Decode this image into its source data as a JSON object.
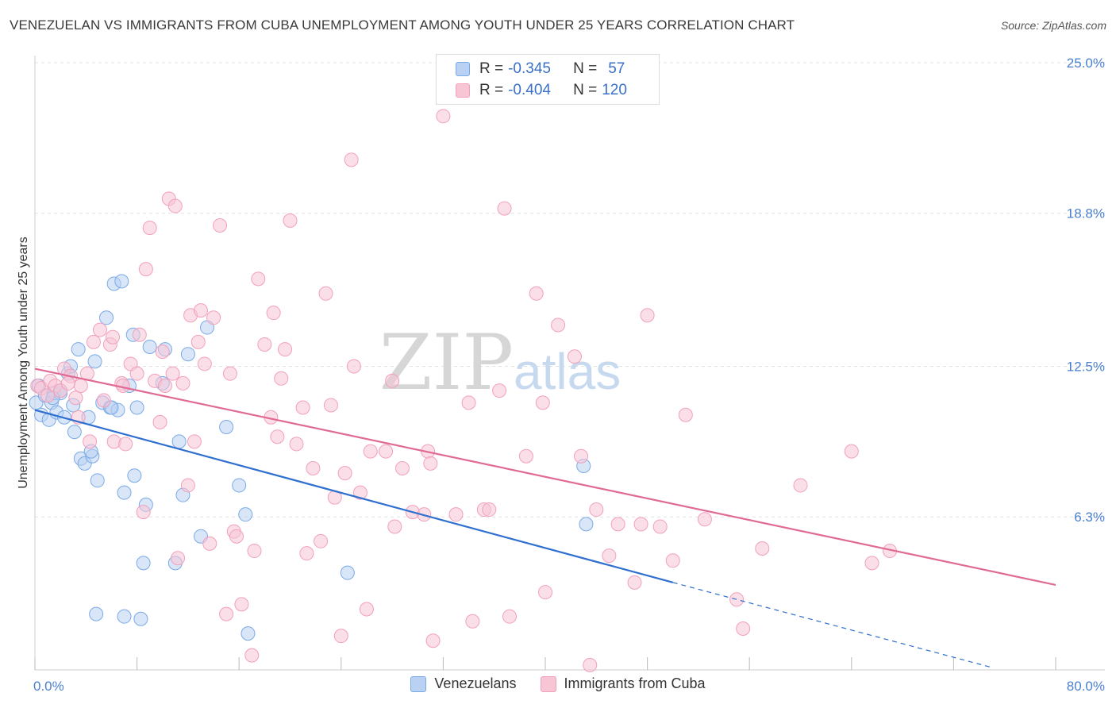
{
  "chart_data": {
    "type": "scatter",
    "title": "VENEZUELAN VS IMMIGRANTS FROM CUBA UNEMPLOYMENT AMONG YOUTH UNDER 25 YEARS CORRELATION CHART",
    "source": "Source: ZipAtlas.com",
    "ylabel": "Unemployment Among Youth under 25 years",
    "xlim": [
      0,
      80
    ],
    "ylim": [
      0,
      25
    ],
    "x_tick_labels": [
      "0.0%",
      "80.0%"
    ],
    "y_ticks": [
      6.3,
      12.5,
      18.8,
      25.0
    ],
    "y_tick_labels": [
      "6.3%",
      "12.5%",
      "18.8%",
      "25.0%"
    ],
    "watermark": "ZIPatlas",
    "legend": [
      {
        "r_label": "R = ",
        "r": "-0.345",
        "n_label": "N = ",
        "n": "57"
      },
      {
        "r_label": "R = ",
        "r": "-0.404",
        "n_label": "N = ",
        "n": "120"
      }
    ],
    "series": [
      {
        "name": "Venezuelans",
        "color": "#7aaae6",
        "fill": "#b9d1f3",
        "line_color": "#2f6fd0",
        "trend": {
          "x0": 0,
          "y0": 10.7,
          "x1": 50,
          "y1": 3.6,
          "dash_to_x": 75,
          "dash_to_y": 0.1
        },
        "points": [
          [
            0.1,
            11.0
          ],
          [
            0.3,
            11.7
          ],
          [
            0.5,
            10.5
          ],
          [
            0.8,
            11.3
          ],
          [
            1.1,
            10.3
          ],
          [
            1.3,
            11.0
          ],
          [
            1.5,
            11.4
          ],
          [
            1.7,
            10.6
          ],
          [
            2.0,
            11.4
          ],
          [
            2.3,
            10.4
          ],
          [
            2.6,
            12.2
          ],
          [
            2.8,
            12.5
          ],
          [
            3.1,
            9.8
          ],
          [
            3.4,
            13.2
          ],
          [
            3.6,
            8.7
          ],
          [
            3.9,
            8.5
          ],
          [
            4.2,
            10.4
          ],
          [
            4.5,
            8.8
          ],
          [
            4.7,
            12.7
          ],
          [
            4.9,
            7.8
          ],
          [
            5.3,
            11.0
          ],
          [
            5.6,
            14.5
          ],
          [
            5.9,
            10.8
          ],
          [
            6.2,
            15.9
          ],
          [
            6.5,
            10.7
          ],
          [
            6.8,
            16.0
          ],
          [
            7.0,
            7.3
          ],
          [
            7.4,
            11.7
          ],
          [
            7.7,
            13.8
          ],
          [
            7.8,
            8.0
          ],
          [
            8.0,
            10.8
          ],
          [
            8.5,
            4.4
          ],
          [
            8.7,
            6.8
          ],
          [
            9.0,
            13.3
          ],
          [
            10.0,
            11.8
          ],
          [
            10.2,
            13.2
          ],
          [
            11.0,
            4.4
          ],
          [
            11.3,
            9.4
          ],
          [
            11.6,
            7.2
          ],
          [
            12.0,
            13.0
          ],
          [
            13.0,
            5.5
          ],
          [
            13.5,
            14.1
          ],
          [
            15.0,
            10.0
          ],
          [
            16.0,
            7.6
          ],
          [
            16.5,
            6.4
          ],
          [
            16.7,
            1.5
          ],
          [
            24.5,
            4.0
          ],
          [
            43.0,
            8.4
          ],
          [
            43.2,
            6.0
          ],
          [
            4.8,
            2.3
          ],
          [
            7.0,
            2.2
          ],
          [
            8.3,
            2.1
          ],
          [
            2.0,
            11.5
          ],
          [
            3.0,
            10.9
          ],
          [
            6.0,
            10.8
          ],
          [
            1.4,
            11.2
          ],
          [
            4.4,
            9.0
          ]
        ]
      },
      {
        "name": "Immigrants from Cuba",
        "color": "#f2a0bb",
        "fill": "#f8c5d5",
        "line_color": "#e06a95",
        "trend": {
          "x0": 0,
          "y0": 12.4,
          "x1": 80,
          "y1": 3.5
        },
        "points": [
          [
            0.2,
            11.7
          ],
          [
            0.5,
            11.6
          ],
          [
            1.0,
            11.3
          ],
          [
            1.2,
            11.9
          ],
          [
            1.6,
            11.7
          ],
          [
            2.0,
            11.5
          ],
          [
            2.3,
            12.4
          ],
          [
            2.8,
            12.1
          ],
          [
            3.2,
            11.2
          ],
          [
            3.6,
            11.7
          ],
          [
            4.1,
            12.2
          ],
          [
            4.3,
            9.4
          ],
          [
            4.6,
            13.5
          ],
          [
            5.1,
            14.0
          ],
          [
            5.4,
            11.1
          ],
          [
            5.9,
            13.4
          ],
          [
            6.1,
            13.7
          ],
          [
            6.2,
            9.4
          ],
          [
            6.8,
            11.8
          ],
          [
            7.1,
            9.3
          ],
          [
            7.5,
            12.6
          ],
          [
            8.0,
            12.2
          ],
          [
            8.2,
            13.8
          ],
          [
            8.5,
            6.5
          ],
          [
            8.7,
            16.5
          ],
          [
            9.0,
            18.2
          ],
          [
            9.4,
            11.9
          ],
          [
            9.8,
            10.2
          ],
          [
            10.0,
            13.1
          ],
          [
            10.2,
            11.7
          ],
          [
            10.5,
            19.4
          ],
          [
            10.8,
            12.2
          ],
          [
            11.0,
            19.1
          ],
          [
            11.2,
            4.6
          ],
          [
            11.6,
            11.8
          ],
          [
            12.0,
            7.6
          ],
          [
            12.2,
            14.6
          ],
          [
            12.5,
            9.4
          ],
          [
            12.8,
            13.5
          ],
          [
            13.0,
            14.8
          ],
          [
            13.3,
            12.6
          ],
          [
            13.7,
            5.2
          ],
          [
            14.0,
            14.5
          ],
          [
            14.5,
            18.3
          ],
          [
            15.0,
            2.3
          ],
          [
            15.3,
            12.2
          ],
          [
            15.6,
            5.7
          ],
          [
            15.8,
            5.5
          ],
          [
            16.2,
            2.7
          ],
          [
            17.0,
            0.6
          ],
          [
            17.2,
            4.9
          ],
          [
            17.5,
            16.1
          ],
          [
            18.0,
            13.4
          ],
          [
            18.5,
            10.4
          ],
          [
            18.7,
            14.7
          ],
          [
            19.0,
            9.6
          ],
          [
            19.3,
            12.0
          ],
          [
            19.6,
            13.2
          ],
          [
            20.0,
            18.5
          ],
          [
            20.5,
            9.3
          ],
          [
            21.0,
            10.8
          ],
          [
            21.3,
            4.8
          ],
          [
            21.8,
            8.3
          ],
          [
            22.4,
            5.3
          ],
          [
            22.8,
            15.5
          ],
          [
            23.2,
            10.9
          ],
          [
            23.5,
            7.1
          ],
          [
            24.0,
            1.4
          ],
          [
            24.3,
            8.1
          ],
          [
            24.8,
            21.0
          ],
          [
            25.0,
            12.5
          ],
          [
            25.5,
            7.3
          ],
          [
            26.0,
            2.5
          ],
          [
            26.3,
            9.0
          ],
          [
            27.5,
            9.0
          ],
          [
            28.0,
            11.9
          ],
          [
            28.2,
            5.9
          ],
          [
            28.8,
            8.3
          ],
          [
            29.6,
            6.5
          ],
          [
            30.5,
            6.4
          ],
          [
            30.8,
            9.0
          ],
          [
            31.0,
            8.5
          ],
          [
            31.2,
            1.2
          ],
          [
            32.0,
            22.8
          ],
          [
            33.0,
            6.4
          ],
          [
            34.0,
            11.0
          ],
          [
            34.3,
            2.0
          ],
          [
            35.2,
            6.6
          ],
          [
            35.6,
            6.6
          ],
          [
            36.4,
            11.5
          ],
          [
            36.8,
            19.0
          ],
          [
            37.2,
            2.2
          ],
          [
            38.5,
            8.8
          ],
          [
            39.3,
            15.5
          ],
          [
            39.8,
            11.0
          ],
          [
            40.0,
            3.2
          ],
          [
            41.0,
            14.2
          ],
          [
            42.3,
            12.9
          ],
          [
            42.8,
            8.8
          ],
          [
            43.5,
            0.2
          ],
          [
            44.0,
            6.6
          ],
          [
            45.0,
            4.7
          ],
          [
            45.7,
            6.0
          ],
          [
            47.0,
            3.6
          ],
          [
            47.5,
            6.0
          ],
          [
            48.0,
            14.6
          ],
          [
            49.0,
            5.9
          ],
          [
            50.0,
            4.5
          ],
          [
            51.0,
            10.5
          ],
          [
            52.5,
            6.2
          ],
          [
            55.0,
            2.9
          ],
          [
            55.5,
            1.7
          ],
          [
            57.0,
            5.0
          ],
          [
            60.0,
            7.6
          ],
          [
            64.0,
            9.0
          ],
          [
            65.6,
            4.4
          ],
          [
            67.0,
            4.9
          ],
          [
            3.4,
            10.4
          ],
          [
            6.9,
            11.7
          ],
          [
            2.6,
            11.8
          ]
        ]
      }
    ]
  }
}
